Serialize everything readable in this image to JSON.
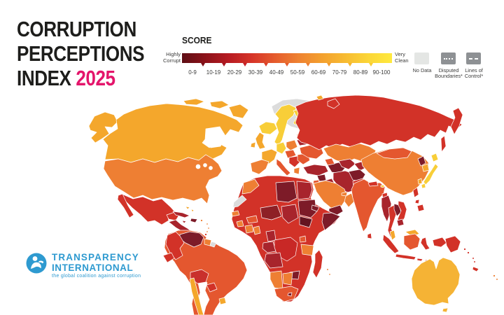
{
  "title": {
    "line1": "CORRUPTION",
    "line2": "PERCEPTIONS",
    "line3": "INDEX",
    "year": "2025"
  },
  "colors": {
    "accent_pink": "#E4156B",
    "logo_blue": "#2E9AD0",
    "text_dark": "#1D1D1B"
  },
  "legend": {
    "heading": "SCORE",
    "left_label": "Highly\nCorrupt",
    "right_label": "Very\nClean",
    "ranges": [
      "0-9",
      "10-19",
      "20-29",
      "30-39",
      "40-49",
      "50-59",
      "60-69",
      "70-79",
      "80-89",
      "90-100"
    ],
    "gradient_stops": [
      "#5E0E15",
      "#8C1219",
      "#B71B22",
      "#D63428",
      "#E55C2D",
      "#EE8231",
      "#F3A02E",
      "#F7BB31",
      "#FBD637",
      "#FFE93E"
    ],
    "tick_colors": [
      "#7A1017",
      "#A61620",
      "#C62026",
      "#DC3F28",
      "#E65D2D",
      "#EE7F31",
      "#F29A2E",
      "#F6B430",
      "#F9CC36"
    ],
    "extra": {
      "no_data": {
        "label": "No Data",
        "color": "#E4E6E4"
      },
      "disputed": {
        "label": "Disputed\nBoundaries*",
        "color": "#8E9194"
      },
      "control": {
        "label": "Lines of\nControl*",
        "color": "#8E9194"
      }
    }
  },
  "logo": {
    "line1": "TRANSPARENCY",
    "line2": "INTERNATIONAL",
    "tagline": "the global coalition against corruption"
  },
  "map": {
    "ocean": "#FFFFFF",
    "palette": {
      "amber": "#F4A72C",
      "amber2": "#F5B335",
      "yellow": "#F8CE38",
      "orange": "#EE7F33",
      "orangered": "#E4572F",
      "red": "#D23228",
      "red2": "#C82826",
      "crimson": "#C9302C",
      "darkred": "#A8242C",
      "maroon": "#7D1B28",
      "darkest": "#641420",
      "nigerdark": "#8E2026",
      "gray": "#DCDCDC"
    },
    "regions": {
      "alaska": "amber",
      "canada": "amber",
      "arctic1": "amber",
      "arctic2": "amber",
      "arctic3": "amber",
      "greenland": "gray",
      "usa": "orange",
      "mexico": "red",
      "baja": "red",
      "yucatan": "red",
      "centam": "darkred",
      "panama": "red",
      "cuba": "darkred",
      "hispaniola": "maroon",
      "jamaica": "darkred",
      "bahamas1": "amber",
      "bahamas2": "amber",
      "puertorico": "orange",
      "ant1": "orange",
      "ant2": "orange",
      "ant3": "orange",
      "trinidad": "red",
      "sa_base": "orangered",
      "venezuela": "maroon",
      "colombia": "red",
      "guyanas": "orange",
      "frguiana": "gray",
      "ecuador": "red",
      "bolivia": "crimson",
      "chile": "amber",
      "paraguay": "red",
      "uruguay": "amber",
      "iceland": "yellow",
      "norway_sweden": "yellow",
      "finland": "yellow",
      "denmark": "amber",
      "uk": "amber",
      "ireland": "amber",
      "france": "amber",
      "germany": "yellow",
      "poland": "orange",
      "belarus": "darkred",
      "baltics": "orange",
      "czech_hu": "orangered",
      "iberia": "orange",
      "italy": "orangered",
      "sicily": "orangered",
      "balkans": "red",
      "greece": "orange",
      "romania": "orangered",
      "ukraine": "orangered",
      "russia": "red",
      "kamchatka": "red",
      "sakhalin": "red",
      "novaya": "red",
      "svalbard": "amber",
      "kazakhstan": "orange",
      "turkmen": "maroon",
      "uzbek": "darkred",
      "kyrgyz": "darkred",
      "caucasus": "orangered",
      "turkey": "darkred",
      "syria": "maroon",
      "jordan": "orangered",
      "iraq": "darkred",
      "iran": "darkred",
      "afghanistan": "maroon",
      "pakistan": "red",
      "saudi": "orange",
      "yemen": "maroon",
      "oman": "orange",
      "uae": "orange",
      "india": "orangered",
      "nepal": "red",
      "bhutan": "yellow",
      "bangladesh": "red",
      "srilanka": "red",
      "china": "orange",
      "mongolia": "orangered",
      "nkorea": "maroon",
      "skorea": "amber",
      "hokkaido": "yellow",
      "honshu": "yellow",
      "kyushu": "yellow",
      "taiwan": "amber",
      "myanmar": "darkred",
      "thailand": "red",
      "laos": "maroon",
      "vietnam": "red",
      "cambodia": "darkred",
      "malay_pen": "amber",
      "malay_borneo": "amber",
      "sumatra": "red",
      "java": "red",
      "borneo": "orangered",
      "sulawesi": "red",
      "sunda1": "red",
      "sunda2": "red",
      "wpapua": "red",
      "png": "red",
      "phil1": "red",
      "phil2": "red",
      "phil3": "red",
      "solomon1": "red",
      "solomon2": "red",
      "vanuatu1": "red",
      "vanuatu2": "red",
      "newcal": "red",
      "fiji1": "orange",
      "fiji2": "orange",
      "africa": "red",
      "morocco": "orange",
      "wsahara": "gray",
      "senegal": "orange",
      "sierra": "orange",
      "cote": "orange",
      "ghana": "orange",
      "burkina": "orangered",
      "niger": "nigerdark",
      "libya": "maroon",
      "egypt": "darkred",
      "chad": "darkred",
      "sudan": "maroon",
      "ssudan": "darkest",
      "eritrea": "maroon",
      "somalia": "maroon",
      "cameroon": "darkred",
      "gabon": "darkred",
      "drc": "red2",
      "uganda": "orangered",
      "tanzania": "orange",
      "angola": "darkred",
      "zimbabwe": "maroon",
      "namibia": "orange",
      "botswana": "orange",
      "safrica": "orangered",
      "lesotho": "maroon",
      "madagascar": "red",
      "mauritius1": "orange",
      "mauritius2": "orange",
      "australia": "amber2",
      "tasmania": "amber2"
    }
  }
}
